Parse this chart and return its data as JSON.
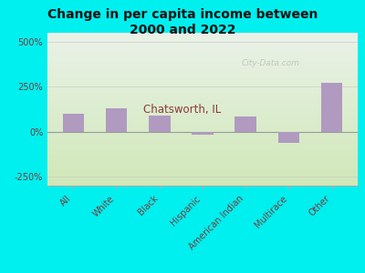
{
  "title": "Change in per capita income between\n2000 and 2022",
  "subtitle": "Chatsworth, IL",
  "categories": [
    "All",
    "White",
    "Black",
    "Hispanic",
    "American Indian",
    "Multirace",
    "Other"
  ],
  "values": [
    100,
    130,
    90,
    -15,
    85,
    -60,
    270
  ],
  "bar_color": "#b09ac0",
  "background_outer": "#00efef",
  "background_inner_top": "#eaf2e8",
  "background_inner_bottom": "#d0e8b8",
  "title_color": "#111111",
  "subtitle_color": "#8b3a3a",
  "tick_label_color": "#7a3a3a",
  "ylim": [
    -300,
    550
  ],
  "yticks": [
    -250,
    0,
    250,
    500
  ],
  "watermark": "City-Data.com",
  "title_fontsize": 10,
  "subtitle_fontsize": 8.5
}
